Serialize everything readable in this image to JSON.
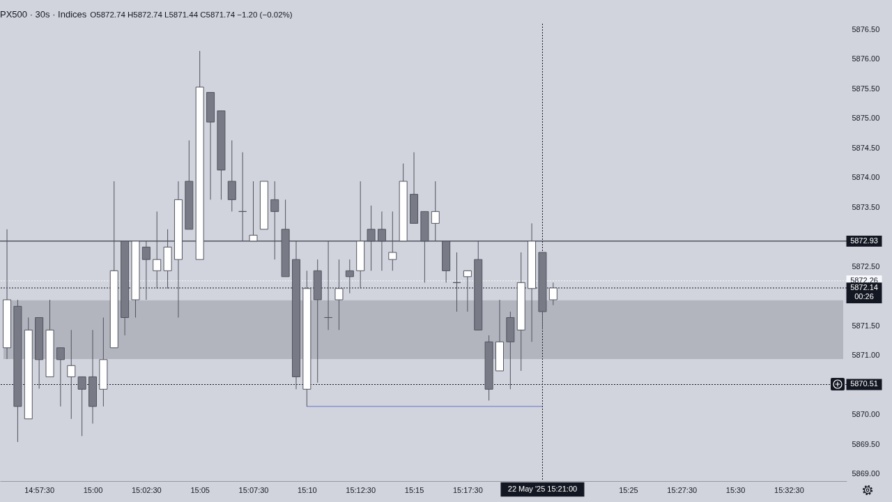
{
  "chart_data": {
    "type": "candlestick",
    "title": "PX500 · 30s · Indices",
    "subtitle": "O5872.74 H5872.74 L5871.44 C5871.74 −1.20 (−0.02%)",
    "xlim": [
      14.9306,
      15.584
    ],
    "xticks": [
      {
        "value": 14.958333,
        "label": "14:57:30"
      },
      {
        "value": 15,
        "label": "15:00"
      },
      {
        "value": 15.041667,
        "label": "15:02:30"
      },
      {
        "value": 15.083333,
        "label": "15:05"
      },
      {
        "value": 15.125,
        "label": "15:07:30"
      },
      {
        "value": 15.166667,
        "label": "15:10"
      },
      {
        "value": 15.208333,
        "label": "15:12:30"
      },
      {
        "value": 15.25,
        "label": "15:15"
      },
      {
        "value": 15.291667,
        "label": "15:17:30"
      },
      {
        "value": 15.416667,
        "label": "15:25"
      },
      {
        "value": 15.458333,
        "label": "15:27:30"
      },
      {
        "value": 15.5,
        "label": "15:30"
      },
      {
        "value": 15.541667,
        "label": "15:32:30"
      }
    ],
    "ylim": [
      5868.88,
      5876.6
    ],
    "yticks": [
      {
        "value": 5869,
        "label": "5869.00"
      },
      {
        "value": 5869.5,
        "label": "5869.50"
      },
      {
        "value": 5870,
        "label": "5870.00"
      },
      {
        "value": 5871,
        "label": "5871.00"
      },
      {
        "value": 5871.5,
        "label": "5871.50"
      },
      {
        "value": 5872.5,
        "label": "5872.50"
      },
      {
        "value": 5873.5,
        "label": "5873.50"
      },
      {
        "value": 5874,
        "label": "5874.00"
      },
      {
        "value": 5874.5,
        "label": "5874.50"
      },
      {
        "value": 5875,
        "label": "5875.00"
      },
      {
        "value": 5875.5,
        "label": "5875.50"
      },
      {
        "value": 5876,
        "label": "5876.00"
      },
      {
        "value": 5876.5,
        "label": "5876.50"
      }
    ],
    "bands": [
      {
        "axis": "y",
        "from": 5870.94,
        "to": 5871.93,
        "color": "#b2b5be"
      }
    ],
    "ref_lines": [
      {
        "axis": "y",
        "value": 5872.93,
        "label": "5872.93",
        "color": "#131722",
        "line_style": "solid"
      },
      {
        "axis": "y",
        "value": 5872.26,
        "label": "5872.26",
        "color": "#f8f9fd",
        "line_style": "dotted"
      },
      {
        "axis": "y",
        "value": 5872.14,
        "label": "5872.14\n00:26",
        "color": "#131722",
        "line_style": "dotted"
      },
      {
        "axis": "y",
        "value": 5870.51,
        "label": "5870.51",
        "color": "#131722",
        "line_style": "dotted"
      },
      {
        "axis": "x",
        "value": 15.35,
        "label": "22 May '25 15:21:00",
        "color": "#131722",
        "line_style": "dotted"
      }
    ],
    "series": [
      {
        "type": "candlestick",
        "color": "#50535e",
        "x": [
          14.933333,
          14.941667,
          14.95,
          14.958333,
          14.966667,
          14.975,
          14.983333,
          14.991667,
          15,
          15.008333,
          15.016667,
          15.025,
          15.033333,
          15.041667,
          15.05,
          15.058333,
          15.066667,
          15.075,
          15.083333,
          15.091667,
          15.1,
          15.108333,
          15.116667,
          15.125,
          15.133333,
          15.141667,
          15.15,
          15.158333,
          15.166667,
          15.175,
          15.183333,
          15.191667,
          15.2,
          15.208333,
          15.216667,
          15.225,
          15.233333,
          15.241667,
          15.25,
          15.258333,
          15.266667,
          15.275,
          15.283333,
          15.291667,
          15.3,
          15.308333,
          15.316667,
          15.325,
          15.333333,
          15.341667,
          15.35,
          15.358333
        ],
        "ohlc": [
          [
            5871.13,
            5873.13,
            5870.94,
            5871.94
          ],
          [
            5871.83,
            5871.94,
            5869.54,
            5870.14
          ],
          [
            5869.93,
            5871.64,
            5869.93,
            5871.43
          ],
          [
            5871.64,
            5871.64,
            5870.44,
            5870.93
          ],
          [
            5870.64,
            5871.94,
            5870.64,
            5871.43
          ],
          [
            5871.13,
            5871.13,
            5870.14,
            5870.93
          ],
          [
            5870.64,
            5871.43,
            5869.93,
            5870.83
          ],
          [
            5870.64,
            5870.64,
            5869.64,
            5870.43
          ],
          [
            5870.64,
            5871.43,
            5869.85,
            5870.14
          ],
          [
            5870.43,
            5871.64,
            5870.14,
            5870.93
          ],
          [
            5871.13,
            5873.94,
            5871.13,
            5872.43
          ],
          [
            5872.93,
            5872.93,
            5871.34,
            5871.64
          ],
          [
            5871.94,
            5872.93,
            5871.64,
            5872.93
          ],
          [
            5872.83,
            5872.93,
            5871.94,
            5872.62
          ],
          [
            5872.43,
            5873.43,
            5872.13,
            5872.62
          ],
          [
            5872.43,
            5873.13,
            5872.13,
            5872.83
          ],
          [
            5872.62,
            5873.94,
            5871.64,
            5873.63
          ],
          [
            5873.94,
            5874.63,
            5873.13,
            5873.13
          ],
          [
            5872.62,
            5876.14,
            5872.62,
            5875.53
          ],
          [
            5875.44,
            5875.44,
            5873.63,
            5874.94
          ],
          [
            5875.13,
            5875.13,
            5873.63,
            5874.13
          ],
          [
            5873.94,
            5874.63,
            5873.43,
            5873.63
          ],
          [
            5873.43,
            5874.43,
            5872.93,
            5873.43
          ],
          [
            5872.93,
            5873.94,
            5872.93,
            5873.03
          ],
          [
            5873.13,
            5873.94,
            5873.13,
            5873.94
          ],
          [
            5873.63,
            5873.94,
            5872.62,
            5873.43
          ],
          [
            5873.13,
            5873.63,
            5872.33,
            5872.33
          ],
          [
            5872.62,
            5872.93,
            5870.43,
            5870.64
          ],
          [
            5870.43,
            5872.43,
            5870.14,
            5872.13
          ],
          [
            5872.43,
            5872.62,
            5870.54,
            5871.94
          ],
          [
            5871.64,
            5872.93,
            5871.43,
            5871.64
          ],
          [
            5871.94,
            5872.62,
            5871.43,
            5872.13
          ],
          [
            5872.43,
            5872.62,
            5872.05,
            5872.33
          ],
          [
            5872.43,
            5873.94,
            5872.13,
            5872.93
          ],
          [
            5873.13,
            5873.53,
            5872.43,
            5872.93
          ],
          [
            5873.13,
            5873.43,
            5872.43,
            5872.93
          ],
          [
            5872.62,
            5873.43,
            5872.43,
            5872.74
          ],
          [
            5872.93,
            5874.24,
            5872.93,
            5873.94
          ],
          [
            5873.72,
            5874.43,
            5873.23,
            5873.23
          ],
          [
            5873.43,
            5873.43,
            5872.23,
            5872.93
          ],
          [
            5873.23,
            5873.94,
            5872.93,
            5873.43
          ],
          [
            5872.93,
            5872.93,
            5872.23,
            5872.43
          ],
          [
            5872.23,
            5872.74,
            5871.74,
            5872.23
          ],
          [
            5872.33,
            5872.43,
            5871.74,
            5872.43
          ],
          [
            5872.62,
            5872.93,
            5871.43,
            5871.43
          ],
          [
            5871.23,
            5871.34,
            5870.24,
            5870.43
          ],
          [
            5870.74,
            5871.94,
            5870.74,
            5871.23
          ],
          [
            5871.64,
            5871.74,
            5870.43,
            5871.23
          ],
          [
            5871.43,
            5872.74,
            5870.74,
            5872.23
          ],
          [
            5872.13,
            5873.23,
            5871.23,
            5872.93
          ],
          [
            5872.74,
            5872.74,
            5871.44,
            5871.74
          ],
          [
            5871.94,
            5872.23,
            5871.85,
            5872.14
          ]
        ],
        "colors": [
          "#ffffff",
          "#787b86",
          "#ffffff",
          "#787b86",
          "#ffffff",
          "#787b86",
          "#ffffff",
          "#787b86",
          "#787b86",
          "#ffffff",
          "#ffffff",
          "#787b86",
          "#ffffff",
          "#787b86",
          "#ffffff",
          "#ffffff",
          "#ffffff",
          "#787b86",
          "#ffffff",
          "#787b86",
          "#787b86",
          "#787b86",
          "#50535e",
          "#ffffff",
          "#ffffff",
          "#787b86",
          "#787b86",
          "#787b86",
          "#ffffff",
          "#787b86",
          "#50535e",
          "#ffffff",
          "#787b86",
          "#ffffff",
          "#787b86",
          "#787b86",
          "#ffffff",
          "#ffffff",
          "#787b86",
          "#787b86",
          "#ffffff",
          "#787b86",
          "#50535e",
          "#ffffff",
          "#787b86",
          "#787b86",
          "#ffffff",
          "#787b86",
          "#ffffff",
          "#ffffff",
          "#787b86",
          "#ffffff"
        ]
      },
      {
        "type": "line",
        "color": "#6a72c9",
        "x": [
          15.166667,
          15.35
        ],
        "values": [
          5870.14,
          5870.14
        ]
      }
    ]
  }
}
